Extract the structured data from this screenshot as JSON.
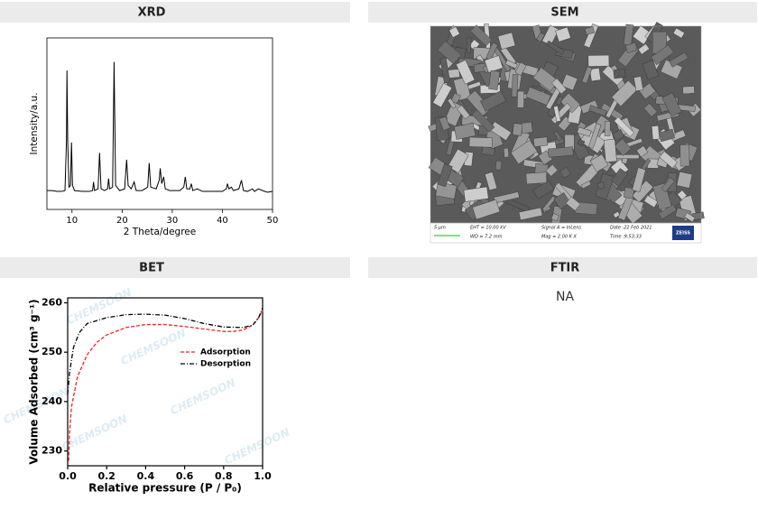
{
  "panels": [
    {
      "title": "XRD",
      "chart_data": {
        "type": "line",
        "color": "#000000",
        "x": [
          5,
          6,
          7,
          8,
          8.6,
          8.9,
          9.0,
          9.15,
          9.4,
          9.7,
          9.9,
          10.1,
          10.5,
          12,
          13.5,
          14.1,
          14.3,
          14.5,
          15.2,
          15.5,
          15.8,
          16.5,
          17.1,
          17.3,
          17.5,
          18.1,
          18.4,
          18.7,
          19.5,
          20.5,
          20.9,
          21.2,
          21.8,
          22.4,
          22.8,
          24,
          25.1,
          25.4,
          25.7,
          26.8,
          27.4,
          27.6,
          27.9,
          28.3,
          28.6,
          29.5,
          30.5,
          31.5,
          32.3,
          32.6,
          32.9,
          33.5,
          33.8,
          34.1,
          35,
          36,
          38,
          40,
          40.8,
          41.0,
          41.3,
          41.8,
          42.2,
          43.3,
          43.8,
          44.2,
          45,
          46,
          46.4,
          47.2,
          48,
          49,
          50
        ],
        "values": [
          11,
          11,
          10.5,
          10.5,
          11,
          40,
          81,
          40,
          13,
          14,
          39,
          14,
          11,
          10.5,
          10.5,
          11,
          16,
          11,
          12,
          33,
          12,
          11,
          12,
          18,
          12,
          13,
          86,
          14,
          11,
          12,
          29,
          14,
          12,
          16,
          11,
          11,
          13,
          27,
          13,
          12,
          17,
          24,
          15,
          19,
          12,
          11,
          11,
          11,
          13,
          19,
          12,
          12,
          15,
          11,
          12,
          10.5,
          10.5,
          10.5,
          12,
          15,
          12,
          13,
          11,
          12,
          17,
          11,
          10.5,
          12,
          10.5,
          12,
          11,
          10,
          10.5
        ],
        "xlim": [
          5,
          50
        ],
        "xticks": [
          10,
          20,
          30,
          40,
          50
        ],
        "ylim": [
          0,
          100
        ],
        "xlabel": "2 Theta/degree",
        "ylabel": "Intensity/a.u."
      }
    },
    {
      "title": "SEM",
      "image": {
        "scale_bar": "5 μm",
        "info": [
          "EHT = 10.00 kV",
          "WD = 7.2 mm",
          "Signal A = InLens",
          "Mag = 2.00 K X",
          "Date :22 Feb 2021",
          "Time :9:53:33"
        ],
        "logo": "ZEISS"
      }
    },
    {
      "title": "BET",
      "chart_data": {
        "type": "line",
        "legend": "upper right",
        "watermark": "CHEMSOON",
        "series": [
          {
            "name": "Adsorption",
            "color": "#e8272a",
            "style": "dashed",
            "x": [
              0.005,
              0.01,
              0.02,
              0.05,
              0.1,
              0.15,
              0.2,
              0.3,
              0.4,
              0.5,
              0.6,
              0.7,
              0.8,
              0.85,
              0.9,
              0.95,
              0.98,
              1.0
            ],
            "values": [
              228,
              234,
              239,
              245,
              249.5,
              252,
              253.5,
              255,
              255.6,
              255.6,
              255.2,
              254.7,
              254.2,
              254.2,
              254.5,
              255.5,
              257,
              258.5
            ]
          },
          {
            "name": "Desorption",
            "color": "#000000",
            "style": "dashdot",
            "x": [
              0.0,
              0.01,
              0.03,
              0.06,
              0.1,
              0.2,
              0.3,
              0.4,
              0.5,
              0.6,
              0.7,
              0.8,
              0.9,
              0.95,
              0.98,
              1.0
            ],
            "values": [
              241.5,
              246,
              251,
              254,
              255.8,
              257,
              257.6,
              257.7,
              257.5,
              256.8,
              255.8,
              255.1,
              255,
              255.5,
              257,
              259
            ]
          }
        ],
        "xlim": [
          0,
          1
        ],
        "xticks": [
          {
            "value": 0,
            "label": "0.0"
          },
          {
            "value": 0.2,
            "label": "0.2"
          },
          {
            "value": 0.4,
            "label": "0.4"
          },
          {
            "value": 0.6,
            "label": "0.6"
          },
          {
            "value": 0.8,
            "label": "0.8"
          },
          {
            "value": 1,
            "label": "1.0"
          }
        ],
        "ylim": [
          227,
          261
        ],
        "yticks": [
          230,
          240,
          250,
          260
        ],
        "xlabel": "Relative pressure (P / P₀)",
        "ylabel": "Volume Adsorbed (cm³ g⁻¹)"
      }
    },
    {
      "title": "FTIR",
      "text": "NA"
    }
  ]
}
